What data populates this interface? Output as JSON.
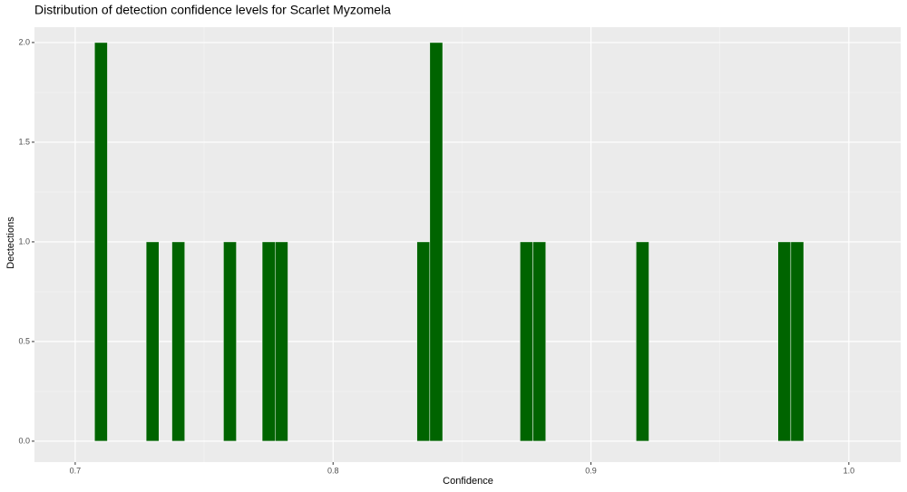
{
  "chart_data": {
    "type": "histogram",
    "title": "Distribution of detection confidence levels for Scarlet Myzomela",
    "x_label": "Confidence",
    "y_label": "Dectections",
    "bins": [
      0.7075,
      0.7125,
      0.7175,
      0.7225,
      0.7275,
      0.7325,
      0.7375,
      0.7425,
      0.7475,
      0.7525,
      0.7575,
      0.7625,
      0.7675,
      0.7725,
      0.7775,
      0.7825,
      0.7875,
      0.7925,
      0.7975,
      0.8025,
      0.8075,
      0.8125,
      0.8175,
      0.8225,
      0.8275,
      0.8325,
      0.8375,
      0.8425,
      0.8475,
      0.8525,
      0.8575,
      0.8625,
      0.8675,
      0.8725,
      0.8775,
      0.8825,
      0.8875,
      0.8925,
      0.8975,
      0.9025,
      0.9075,
      0.9125,
      0.9175,
      0.9225,
      0.9275,
      0.9325,
      0.9375,
      0.9425,
      0.9475,
      0.9525,
      0.9575,
      0.9625,
      0.9675,
      0.9725,
      0.9775,
      0.9825
    ],
    "values": [
      2,
      0,
      0,
      0,
      1,
      0,
      1,
      0,
      0,
      0,
      1,
      0,
      0,
      1,
      1,
      0,
      0,
      0,
      0,
      0,
      0,
      0,
      0,
      0,
      0,
      1,
      2,
      0,
      0,
      0,
      0,
      0,
      0,
      1,
      1,
      0,
      0,
      0,
      0,
      0,
      0,
      0,
      1,
      0,
      0,
      0,
      0,
      0,
      0,
      0,
      0,
      0,
      0,
      1,
      1
    ],
    "color": "#006400",
    "xlim": [
      0.6842,
      1.0201
    ],
    "ylim": [
      -0.105,
      2.077
    ],
    "xticks": [
      0.7,
      0.8,
      0.9,
      {
        "value": 1,
        "label": "1.0"
      }
    ],
    "yticks": [
      {
        "value": 0,
        "label": "0.0"
      },
      0.5,
      {
        "value": 1,
        "label": "1.0"
      },
      1.5,
      {
        "value": 2,
        "label": "2.0"
      }
    ],
    "grid": true
  }
}
